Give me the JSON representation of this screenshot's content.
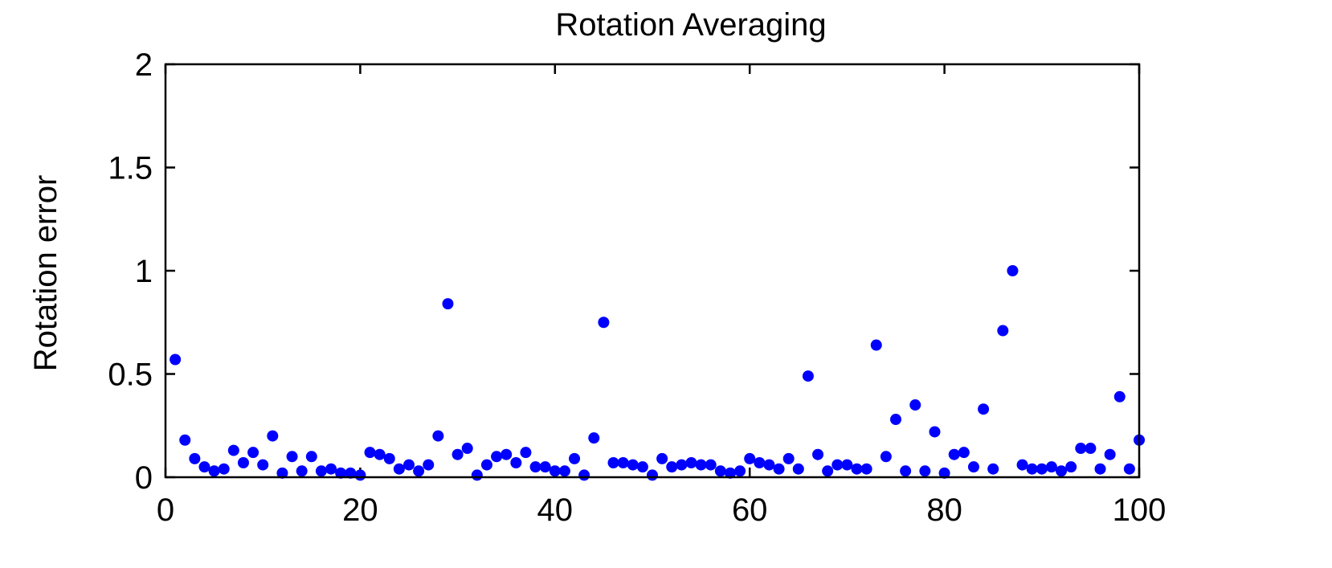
{
  "chart_data": {
    "type": "scatter",
    "title": "Rotation Averaging",
    "xlabel": "",
    "ylabel": "Rotation error",
    "xlim": [
      0,
      100
    ],
    "ylim": [
      0,
      2
    ],
    "xticks": [
      0,
      20,
      40,
      60,
      80,
      100
    ],
    "yticks": [
      0,
      0.5,
      1,
      1.5,
      2
    ],
    "xtick_labels": [
      "0",
      "20",
      "40",
      "60",
      "80",
      "100"
    ],
    "ytick_labels": [
      "0",
      "0.5",
      "1",
      "1.5",
      "2"
    ],
    "grid": false,
    "marker_color": "#0000ff",
    "series": [
      {
        "x": [
          1,
          2,
          3,
          4,
          5,
          6,
          7,
          8,
          9,
          10,
          11,
          12,
          13,
          14,
          15,
          16,
          17,
          18,
          19,
          20,
          21,
          22,
          23,
          24,
          25,
          26,
          27,
          28,
          29,
          30,
          31,
          32,
          33,
          34,
          35,
          36,
          37,
          38,
          39,
          40,
          41,
          42,
          43,
          44,
          45,
          46,
          47,
          48,
          49,
          50,
          51,
          52,
          53,
          54,
          55,
          56,
          57,
          58,
          59,
          60,
          61,
          62,
          63,
          64,
          65,
          66,
          67,
          68,
          69,
          70,
          71,
          72,
          73,
          74,
          75,
          76,
          77,
          78,
          79,
          80,
          81,
          82,
          83,
          84,
          85,
          86,
          87,
          88,
          89,
          90,
          91,
          92,
          93,
          94,
          95,
          96,
          97,
          98,
          99,
          100
        ],
        "y": [
          0.57,
          0.18,
          0.09,
          0.05,
          0.03,
          0.04,
          0.13,
          0.07,
          0.12,
          0.06,
          0.2,
          0.02,
          0.1,
          0.03,
          0.1,
          0.03,
          0.04,
          0.02,
          0.02,
          0.01,
          0.12,
          0.11,
          0.09,
          0.04,
          0.06,
          0.03,
          0.06,
          0.2,
          0.84,
          0.11,
          0.14,
          0.01,
          0.06,
          0.1,
          0.11,
          0.07,
          0.12,
          0.05,
          0.05,
          0.03,
          0.03,
          0.09,
          0.01,
          0.19,
          0.75,
          0.07,
          0.07,
          0.06,
          0.05,
          0.01,
          0.09,
          0.05,
          0.06,
          0.07,
          0.06,
          0.06,
          0.03,
          0.02,
          0.03,
          0.09,
          0.07,
          0.06,
          0.04,
          0.09,
          0.04,
          0.49,
          0.11,
          0.03,
          0.06,
          0.06,
          0.04,
          0.04,
          0.64,
          0.1,
          0.28,
          0.03,
          0.35,
          0.03,
          0.22,
          0.02,
          0.11,
          0.12,
          0.05,
          0.33,
          0.04,
          0.71,
          1.0,
          0.06,
          0.04,
          0.04,
          0.05,
          0.03,
          0.05,
          0.14,
          0.14,
          0.04,
          0.11,
          0.39,
          0.04,
          0.18
        ]
      }
    ]
  }
}
